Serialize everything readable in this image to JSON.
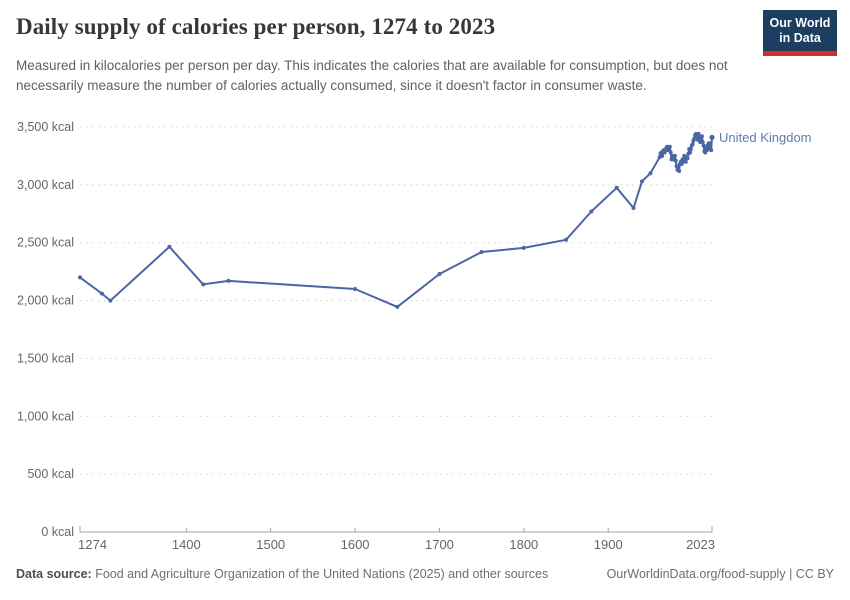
{
  "header": {
    "title": "Daily supply of calories per person, 1274 to 2023",
    "logo": {
      "line1": "Our World",
      "line2": "in Data"
    }
  },
  "subtitle": "Measured in kilocalories per person per day. This indicates the calories that are available for consumption, but does not necessarily measure the number of calories actually consumed, since it doesn't factor in consumer waste.",
  "colors": {
    "line": "#4a67a3",
    "entity_label": "#5b7db1",
    "gridline": "#dcdcdc",
    "axis": "#a6a6a6",
    "tick_label": "#666666",
    "title": "#373737",
    "logo_navy": "#1d3d63",
    "logo_red": "#cf3129"
  },
  "chart_data": {
    "type": "line",
    "title": "Daily supply of calories per person, 1274 to 2023",
    "xlabel": "",
    "ylabel": "",
    "xlim": [
      1274,
      2023
    ],
    "ylim": [
      0,
      3500
    ],
    "x_ticks": [
      1274,
      1400,
      1500,
      1600,
      1700,
      1800,
      1900,
      2023
    ],
    "y_ticks": [
      0,
      500,
      1000,
      1500,
      2000,
      2500,
      3000,
      3500
    ],
    "y_tick_suffix": " kcal",
    "grid": "dashed-horizontal",
    "legend_position": "end-of-line",
    "series": [
      {
        "name": "United Kingdom",
        "color": "#4a67a3",
        "points": [
          [
            1274,
            2200
          ],
          [
            1300,
            2060
          ],
          [
            1310,
            2000
          ],
          [
            1380,
            2465
          ],
          [
            1420,
            2140
          ],
          [
            1450,
            2170
          ],
          [
            1600,
            2100
          ],
          [
            1650,
            1945
          ],
          [
            1700,
            2230
          ],
          [
            1750,
            2420
          ],
          [
            1800,
            2455
          ],
          [
            1850,
            2525
          ],
          [
            1880,
            2770
          ],
          [
            1910,
            2975
          ],
          [
            1930,
            2800
          ],
          [
            1940,
            3030
          ],
          [
            1950,
            3100
          ],
          [
            1961,
            3240
          ],
          [
            1962,
            3270
          ],
          [
            1963,
            3280
          ],
          [
            1964,
            3250
          ],
          [
            1965,
            3290
          ],
          [
            1966,
            3300
          ],
          [
            1967,
            3280
          ],
          [
            1968,
            3300
          ],
          [
            1969,
            3320
          ],
          [
            1970,
            3330
          ],
          [
            1971,
            3300
          ],
          [
            1972,
            3320
          ],
          [
            1973,
            3330
          ],
          [
            1974,
            3280
          ],
          [
            1975,
            3220
          ],
          [
            1976,
            3250
          ],
          [
            1977,
            3220
          ],
          [
            1978,
            3230
          ],
          [
            1979,
            3250
          ],
          [
            1980,
            3210
          ],
          [
            1981,
            3160
          ],
          [
            1982,
            3130
          ],
          [
            1983,
            3160
          ],
          [
            1984,
            3120
          ],
          [
            1985,
            3180
          ],
          [
            1986,
            3200
          ],
          [
            1987,
            3180
          ],
          [
            1988,
            3220
          ],
          [
            1989,
            3200
          ],
          [
            1990,
            3250
          ],
          [
            1991,
            3220
          ],
          [
            1992,
            3200
          ],
          [
            1993,
            3240
          ],
          [
            1994,
            3230
          ],
          [
            1995,
            3270
          ],
          [
            1996,
            3310
          ],
          [
            1997,
            3280
          ],
          [
            1998,
            3310
          ],
          [
            1999,
            3340
          ],
          [
            2000,
            3350
          ],
          [
            2001,
            3380
          ],
          [
            2002,
            3400
          ],
          [
            2003,
            3430
          ],
          [
            2004,
            3440
          ],
          [
            2005,
            3420
          ],
          [
            2006,
            3390
          ],
          [
            2007,
            3440
          ],
          [
            2008,
            3400
          ],
          [
            2009,
            3370
          ],
          [
            2010,
            3390
          ],
          [
            2011,
            3420
          ],
          [
            2012,
            3370
          ],
          [
            2013,
            3340
          ],
          [
            2014,
            3290
          ],
          [
            2015,
            3280
          ],
          [
            2016,
            3320
          ],
          [
            2017,
            3300
          ],
          [
            2018,
            3340
          ],
          [
            2019,
            3360
          ],
          [
            2020,
            3310
          ],
          [
            2021,
            3360
          ],
          [
            2022,
            3300
          ],
          [
            2023,
            3410
          ]
        ]
      }
    ]
  },
  "footer": {
    "source_label": "Data source:",
    "source_text": " Food and Agriculture Organization of the United Nations (2025) and other sources",
    "link_text": "OurWorldinData.org/food-supply",
    "license_sep": " | ",
    "license": "CC BY"
  }
}
